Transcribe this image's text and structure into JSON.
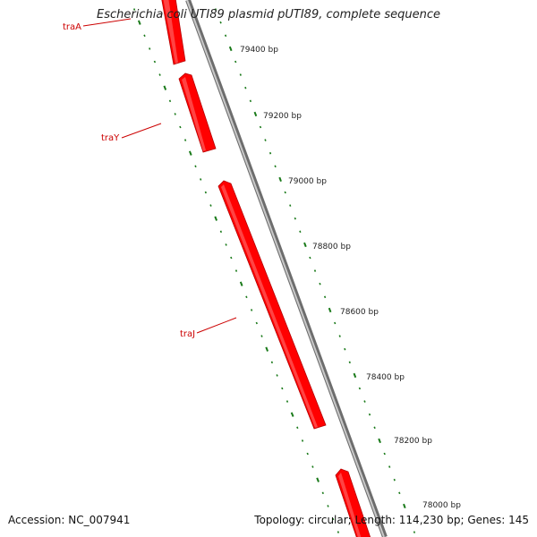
{
  "title": "Escherichia coli UTI89 plasmid pUTI89, complete sequence",
  "accession": "Accession: NC_007941",
  "summary": "Topology: circular; Length: 114,230 bp; Genes: 145",
  "colors": {
    "gene": "#ff0000",
    "gene_highlight": "#ff6a6a",
    "backbone": "#8a8a8a",
    "ticks": "#1a7a1a",
    "gene_label": "#cc0000"
  },
  "ruler": {
    "labels": [
      "79400 bp",
      "79200 bp",
      "79000 bp",
      "78800 bp",
      "78600 bp",
      "78400 bp",
      "78200 bp",
      "78000 bp"
    ]
  },
  "genes": [
    {
      "name": "traA",
      "strand": "reverse",
      "labeled": true
    },
    {
      "name": "traY",
      "strand": "reverse",
      "labeled": true
    },
    {
      "name": "traJ",
      "strand": "reverse",
      "labeled": true
    },
    {
      "name": "",
      "strand": "reverse",
      "labeled": false
    }
  ]
}
